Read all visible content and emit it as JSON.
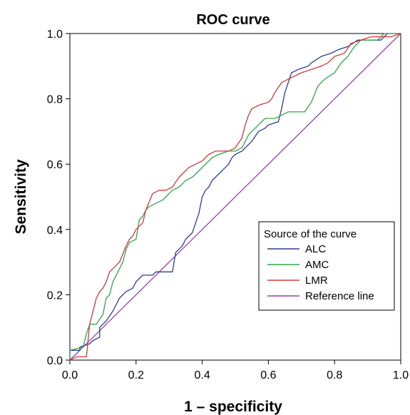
{
  "chart_data": {
    "type": "line",
    "title": "ROC curve",
    "xlabel": "1 – specificity",
    "ylabel": "Sensitivity",
    "xlim": [
      0,
      1
    ],
    "ylim": [
      0,
      1
    ],
    "x_ticks": [
      "0.0",
      "0.2",
      "0.4",
      "0.6",
      "0.8",
      "1.0"
    ],
    "y_ticks": [
      "0.0",
      "0.2",
      "0.4",
      "0.6",
      "0.8",
      "1.0"
    ],
    "grid": false,
    "legend": {
      "title": "Source of the curve",
      "placement": "lower-right"
    },
    "series": [
      {
        "name": "ALC",
        "color": "#2b3d9b",
        "points": [
          [
            0,
            0
          ],
          [
            0,
            0.03
          ],
          [
            0.03,
            0.03
          ],
          [
            0.03,
            0.04
          ],
          [
            0.06,
            0.05
          ],
          [
            0.07,
            0.06
          ],
          [
            0.09,
            0.07
          ],
          [
            0.09,
            0.1
          ],
          [
            0.1,
            0.11
          ],
          [
            0.11,
            0.12
          ],
          [
            0.13,
            0.15
          ],
          [
            0.15,
            0.19
          ],
          [
            0.17,
            0.21
          ],
          [
            0.19,
            0.22
          ],
          [
            0.2,
            0.24
          ],
          [
            0.21,
            0.25
          ],
          [
            0.22,
            0.26
          ],
          [
            0.25,
            0.26
          ],
          [
            0.26,
            0.27
          ],
          [
            0.28,
            0.27
          ],
          [
            0.31,
            0.27
          ],
          [
            0.32,
            0.33
          ],
          [
            0.34,
            0.35
          ],
          [
            0.35,
            0.37
          ],
          [
            0.37,
            0.39
          ],
          [
            0.39,
            0.45
          ],
          [
            0.4,
            0.5
          ],
          [
            0.41,
            0.52
          ],
          [
            0.42,
            0.53
          ],
          [
            0.43,
            0.55
          ],
          [
            0.44,
            0.56
          ],
          [
            0.47,
            0.59
          ],
          [
            0.48,
            0.6
          ],
          [
            0.49,
            0.62
          ],
          [
            0.5,
            0.63
          ],
          [
            0.52,
            0.64
          ],
          [
            0.54,
            0.66
          ],
          [
            0.55,
            0.67
          ],
          [
            0.57,
            0.7
          ],
          [
            0.59,
            0.71
          ],
          [
            0.6,
            0.72
          ],
          [
            0.63,
            0.73
          ],
          [
            0.64,
            0.77
          ],
          [
            0.65,
            0.82
          ],
          [
            0.67,
            0.88
          ],
          [
            0.69,
            0.89
          ],
          [
            0.72,
            0.9
          ],
          [
            0.73,
            0.91
          ],
          [
            0.76,
            0.93
          ],
          [
            0.79,
            0.94
          ],
          [
            0.81,
            0.95
          ],
          [
            0.84,
            0.96
          ],
          [
            0.87,
            0.98
          ],
          [
            0.94,
            0.98
          ],
          [
            0.96,
            1.0
          ],
          [
            1.0,
            1.0
          ]
        ]
      },
      {
        "name": "AMC",
        "color": "#2fa84a",
        "points": [
          [
            0,
            0
          ],
          [
            0,
            0.03
          ],
          [
            0.04,
            0.04
          ],
          [
            0.05,
            0.08
          ],
          [
            0.06,
            0.11
          ],
          [
            0.08,
            0.11
          ],
          [
            0.1,
            0.14
          ],
          [
            0.11,
            0.19
          ],
          [
            0.12,
            0.2
          ],
          [
            0.13,
            0.24
          ],
          [
            0.14,
            0.26
          ],
          [
            0.16,
            0.3
          ],
          [
            0.17,
            0.34
          ],
          [
            0.18,
            0.36
          ],
          [
            0.2,
            0.37
          ],
          [
            0.21,
            0.43
          ],
          [
            0.22,
            0.44
          ],
          [
            0.23,
            0.46
          ],
          [
            0.24,
            0.47
          ],
          [
            0.26,
            0.48
          ],
          [
            0.28,
            0.49
          ],
          [
            0.29,
            0.5
          ],
          [
            0.31,
            0.52
          ],
          [
            0.33,
            0.53
          ],
          [
            0.35,
            0.55
          ],
          [
            0.37,
            0.56
          ],
          [
            0.39,
            0.58
          ],
          [
            0.41,
            0.6
          ],
          [
            0.43,
            0.62
          ],
          [
            0.45,
            0.63
          ],
          [
            0.48,
            0.64
          ],
          [
            0.5,
            0.64
          ],
          [
            0.52,
            0.65
          ],
          [
            0.54,
            0.69
          ],
          [
            0.55,
            0.7
          ],
          [
            0.57,
            0.72
          ],
          [
            0.59,
            0.74
          ],
          [
            0.62,
            0.74
          ],
          [
            0.64,
            0.75
          ],
          [
            0.66,
            0.76
          ],
          [
            0.71,
            0.76
          ],
          [
            0.73,
            0.79
          ],
          [
            0.75,
            0.84
          ],
          [
            0.77,
            0.86
          ],
          [
            0.8,
            0.88
          ],
          [
            0.82,
            0.91
          ],
          [
            0.84,
            0.93
          ],
          [
            0.86,
            0.96
          ],
          [
            0.88,
            0.98
          ],
          [
            0.93,
            0.98
          ],
          [
            0.95,
            1.0
          ],
          [
            1.0,
            1.0
          ]
        ]
      },
      {
        "name": "LMR",
        "color": "#d93838",
        "points": [
          [
            0,
            0
          ],
          [
            0.02,
            0.01
          ],
          [
            0.05,
            0.01
          ],
          [
            0.06,
            0.11
          ],
          [
            0.07,
            0.15
          ],
          [
            0.08,
            0.19
          ],
          [
            0.09,
            0.21
          ],
          [
            0.1,
            0.22
          ],
          [
            0.11,
            0.24
          ],
          [
            0.12,
            0.27
          ],
          [
            0.13,
            0.28
          ],
          [
            0.15,
            0.3
          ],
          [
            0.17,
            0.35
          ],
          [
            0.18,
            0.37
          ],
          [
            0.19,
            0.38
          ],
          [
            0.2,
            0.4
          ],
          [
            0.22,
            0.42
          ],
          [
            0.23,
            0.46
          ],
          [
            0.25,
            0.51
          ],
          [
            0.27,
            0.52
          ],
          [
            0.29,
            0.52
          ],
          [
            0.31,
            0.53
          ],
          [
            0.33,
            0.56
          ],
          [
            0.35,
            0.58
          ],
          [
            0.36,
            0.59
          ],
          [
            0.38,
            0.6
          ],
          [
            0.4,
            0.61
          ],
          [
            0.42,
            0.63
          ],
          [
            0.44,
            0.64
          ],
          [
            0.48,
            0.64
          ],
          [
            0.5,
            0.65
          ],
          [
            0.52,
            0.68
          ],
          [
            0.53,
            0.72
          ],
          [
            0.54,
            0.75
          ],
          [
            0.55,
            0.77
          ],
          [
            0.57,
            0.78
          ],
          [
            0.6,
            0.79
          ],
          [
            0.61,
            0.8
          ],
          [
            0.62,
            0.82
          ],
          [
            0.64,
            0.85
          ],
          [
            0.66,
            0.86
          ],
          [
            0.68,
            0.87
          ],
          [
            0.7,
            0.88
          ],
          [
            0.73,
            0.89
          ],
          [
            0.76,
            0.9
          ],
          [
            0.78,
            0.91
          ],
          [
            0.8,
            0.93
          ],
          [
            0.83,
            0.94
          ],
          [
            0.85,
            0.97
          ],
          [
            0.88,
            0.98
          ],
          [
            0.91,
            0.99
          ],
          [
            0.97,
            0.99
          ],
          [
            1.0,
            1.0
          ]
        ]
      },
      {
        "name": "Reference line",
        "color": "#9b3fae",
        "points": [
          [
            0,
            0
          ],
          [
            1,
            1
          ]
        ]
      }
    ]
  }
}
